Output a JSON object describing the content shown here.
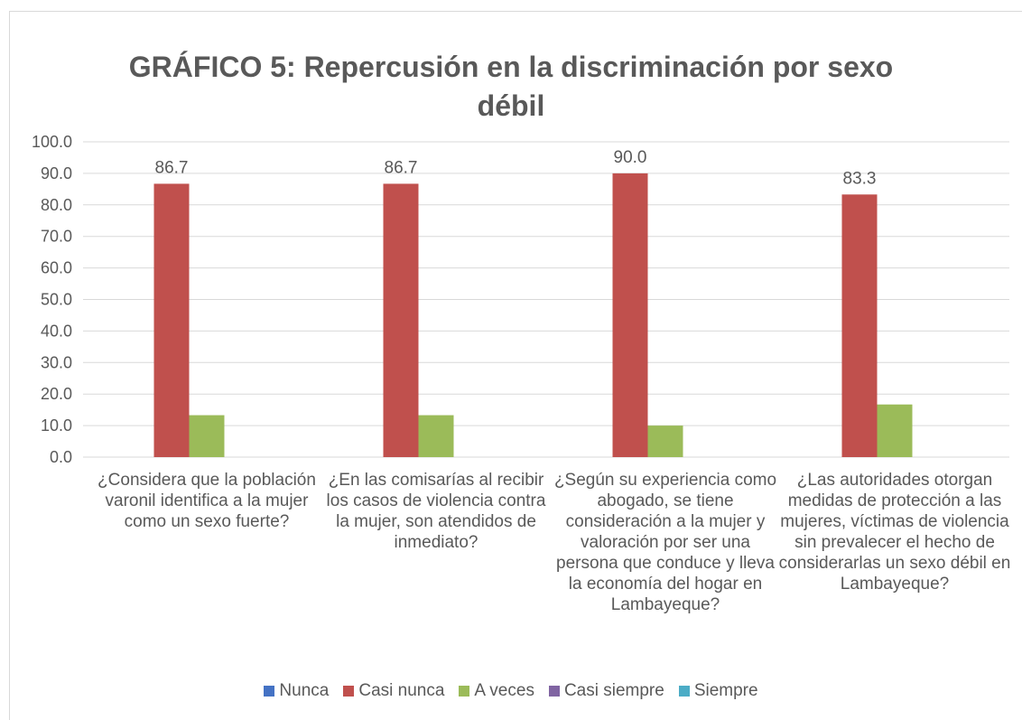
{
  "chart_data": {
    "type": "bar",
    "title": "GRÁFICO 5: Repercusión en la discriminación por sexo débil",
    "categories": [
      "¿Considera que la población varonil identifica a la mujer como un sexo fuerte?",
      "¿En las comisarías al recibir los casos de violencia contra la mujer, son atendidos de inmediato?",
      "¿Según su experiencia como abogado, se tiene consideración a la mujer y valoración por ser una persona que conduce y lleva la economía del hogar en Lambayeque?",
      "¿Las autoridades otorgan medidas de protección a las mujeres, víctimas de violencia sin prevalecer el hecho de considerarlas un sexo débil en Lambayeque?"
    ],
    "series": [
      {
        "name": "Nunca",
        "color": "#4472c4",
        "values": [
          0,
          0,
          0,
          0
        ]
      },
      {
        "name": "Casi nunca",
        "color": "#c0504d",
        "values": [
          86.7,
          86.7,
          90.0,
          83.3
        ],
        "value_labels": [
          "86.7",
          "86.7",
          "90.0",
          "83.3"
        ]
      },
      {
        "name": "A veces",
        "color": "#9bbb59",
        "values": [
          13.3,
          13.3,
          10.0,
          16.7
        ]
      },
      {
        "name": "Casi siempre",
        "color": "#8064a2",
        "values": [
          0,
          0,
          0,
          0
        ]
      },
      {
        "name": "Siempre",
        "color": "#4bacc6",
        "values": [
          0,
          0,
          0,
          0
        ]
      }
    ],
    "ylim": [
      0,
      100
    ],
    "yticks": [
      {
        "value": 0,
        "label": "0.0"
      },
      {
        "value": 10,
        "label": "10.0"
      },
      {
        "value": 20,
        "label": "20.0"
      },
      {
        "value": 30,
        "label": "30.0"
      },
      {
        "value": 40,
        "label": "40.0"
      },
      {
        "value": 50,
        "label": "50.0"
      },
      {
        "value": 60,
        "label": "60.0"
      },
      {
        "value": 70,
        "label": "70.0"
      },
      {
        "value": 80,
        "label": "80.0"
      },
      {
        "value": 90,
        "label": "90.0"
      },
      {
        "value": 100,
        "label": "100.0"
      }
    ],
    "grid": true,
    "legend": "bottom"
  }
}
